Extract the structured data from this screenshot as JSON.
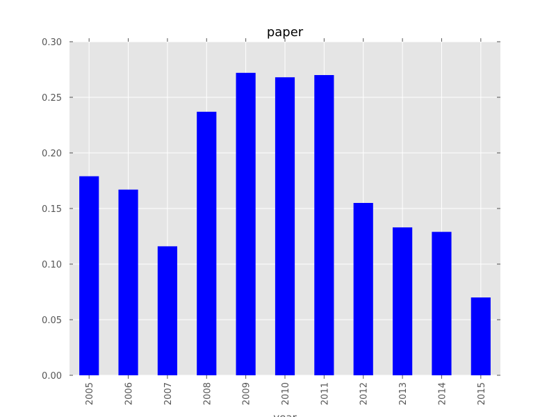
{
  "chart_data": {
    "type": "bar",
    "title": "paper",
    "xlabel": "year",
    "ylabel": "",
    "categories": [
      "2005",
      "2006",
      "2007",
      "2008",
      "2009",
      "2010",
      "2011",
      "2012",
      "2013",
      "2014",
      "2015"
    ],
    "values": [
      0.179,
      0.167,
      0.116,
      0.237,
      0.272,
      0.268,
      0.27,
      0.155,
      0.133,
      0.129,
      0.07
    ],
    "ylim": [
      0.0,
      0.3
    ],
    "yticks": [
      "0.00",
      "0.05",
      "0.10",
      "0.15",
      "0.20",
      "0.25",
      "0.30"
    ],
    "grid": true,
    "legend": "none",
    "colors": {
      "bar": "#0000ff",
      "plot_background": "#e5e5e5",
      "grid": "#ffffff",
      "tick_text": "#555555",
      "title_text": "#000000"
    }
  }
}
